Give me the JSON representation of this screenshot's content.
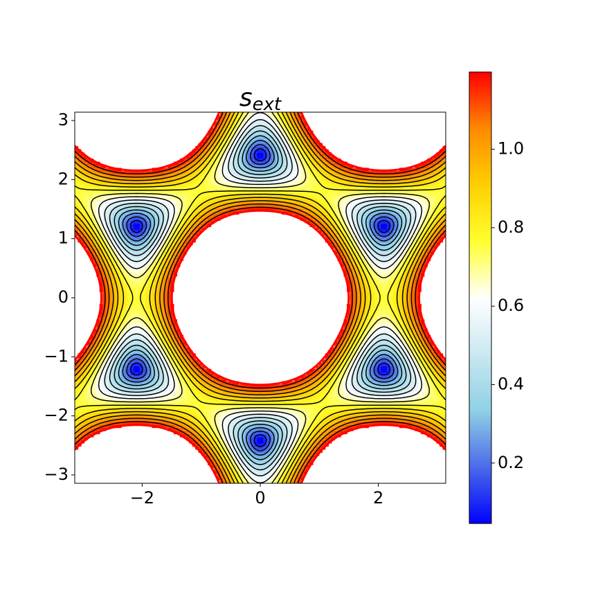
{
  "chart_data": {
    "type": "contour",
    "title": {
      "main": "s",
      "subscript": "ext"
    },
    "xlim": [
      -3.14159,
      3.14159
    ],
    "ylim": [
      -3.14159,
      3.14159
    ],
    "xticks": [
      {
        "value": -2,
        "label": "−2"
      },
      0,
      2
    ],
    "yticks": [
      {
        "value": -3,
        "label": "−3"
      },
      {
        "value": -2,
        "label": "−2"
      },
      {
        "value": -1,
        "label": "−1"
      },
      0,
      1,
      2,
      3
    ],
    "colorbar": {
      "clim": [
        0.046,
        1.197
      ],
      "ticks": [
        0.2,
        0.4,
        0.6,
        0.8,
        {
          "value": 1.0,
          "label": "1.0"
        }
      ],
      "colormap": [
        "#0000ff",
        "#4a6ae8",
        "#8fd0e6",
        "#c9e8f0",
        "#ffffff",
        "#ffff30",
        "#ffd000",
        "#ff8a00",
        "#ff0000"
      ]
    },
    "line_color": "#000000",
    "edge_color": "#ff0000"
  }
}
